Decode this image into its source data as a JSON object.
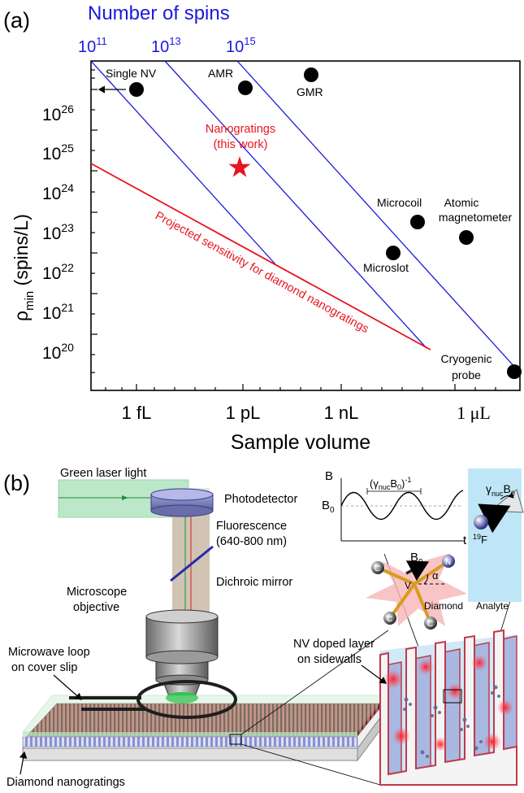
{
  "panel_a": {
    "label": "(a)",
    "top_axis_title": "Number of spins",
    "top_ticks": [
      {
        "base": "10",
        "exp": "11"
      },
      {
        "base": "10",
        "exp": "13"
      },
      {
        "base": "10",
        "exp": "15"
      }
    ],
    "ylabel": {
      "main": "ρ",
      "sub": "min",
      "rest": " (spins/L)"
    },
    "xlabel": "Sample volume",
    "y_ticks": [
      {
        "base": "10",
        "exp": "26"
      },
      {
        "base": "10",
        "exp": "25"
      },
      {
        "base": "10",
        "exp": "24"
      },
      {
        "base": "10",
        "exp": "23"
      },
      {
        "base": "10",
        "exp": "22"
      },
      {
        "base": "10",
        "exp": "21"
      },
      {
        "base": "10",
        "exp": "20"
      }
    ],
    "x_ticks": [
      "1 fL",
      "1 pL",
      "1 nL",
      "1 μL"
    ],
    "point_labels": {
      "single_nv": "Single NV",
      "amr": "AMR",
      "gmr": "GMR",
      "microcoil": "Microcoil",
      "atomic_1": "Atomic",
      "atomic_2": "magnetometer",
      "microslot": "Microslot",
      "cryo_1": "Cryogenic",
      "cryo_2": "probe"
    },
    "nanogratings_1": "Nanogratings",
    "nanogratings_2": "(this work)",
    "projected": "Projected sensitivity for diamond nanogratings",
    "colors": {
      "blue": "#1a1adc",
      "red": "#e8141e",
      "black": "#000000"
    }
  },
  "panel_b": {
    "label": "(b)",
    "photodetector": "Photodetector",
    "fluorescence_1": "Fluorescence",
    "fluorescence_2": "(640-800 nm)",
    "green_laser": "Green laser light",
    "dichroic": "Dichroic mirror",
    "objective_1": "Microscope",
    "objective_2": "objective",
    "microwave_1": "Microwave loop",
    "microwave_2": "on cover slip",
    "nanogratings": "Diamond nanogratings",
    "nv_layer_1": "NV doped layer",
    "nv_layer_2": "on sidewalls",
    "graph_b": "B",
    "graph_b0": "B",
    "graph_b0_sub": "0",
    "graph_t": "t",
    "graph_period": "(γ",
    "graph_period_sub": "nuc",
    "graph_period_rest": "B",
    "graph_period_sub2": "0",
    "graph_period_end": ")",
    "graph_period_exp": "-1",
    "nv_b0": "B",
    "nv_b0_sub": "0",
    "atom_c": "C",
    "atom_n": "N",
    "atom_v": "V",
    "alpha": "α",
    "diamond": "Diamond",
    "analyte": "Analyte",
    "gamma": "γ",
    "gamma_sub": "nuc",
    "gamma_b": "B",
    "gamma_b_sub": "0",
    "fluorine_exp": "19",
    "fluorine": "F"
  }
}
